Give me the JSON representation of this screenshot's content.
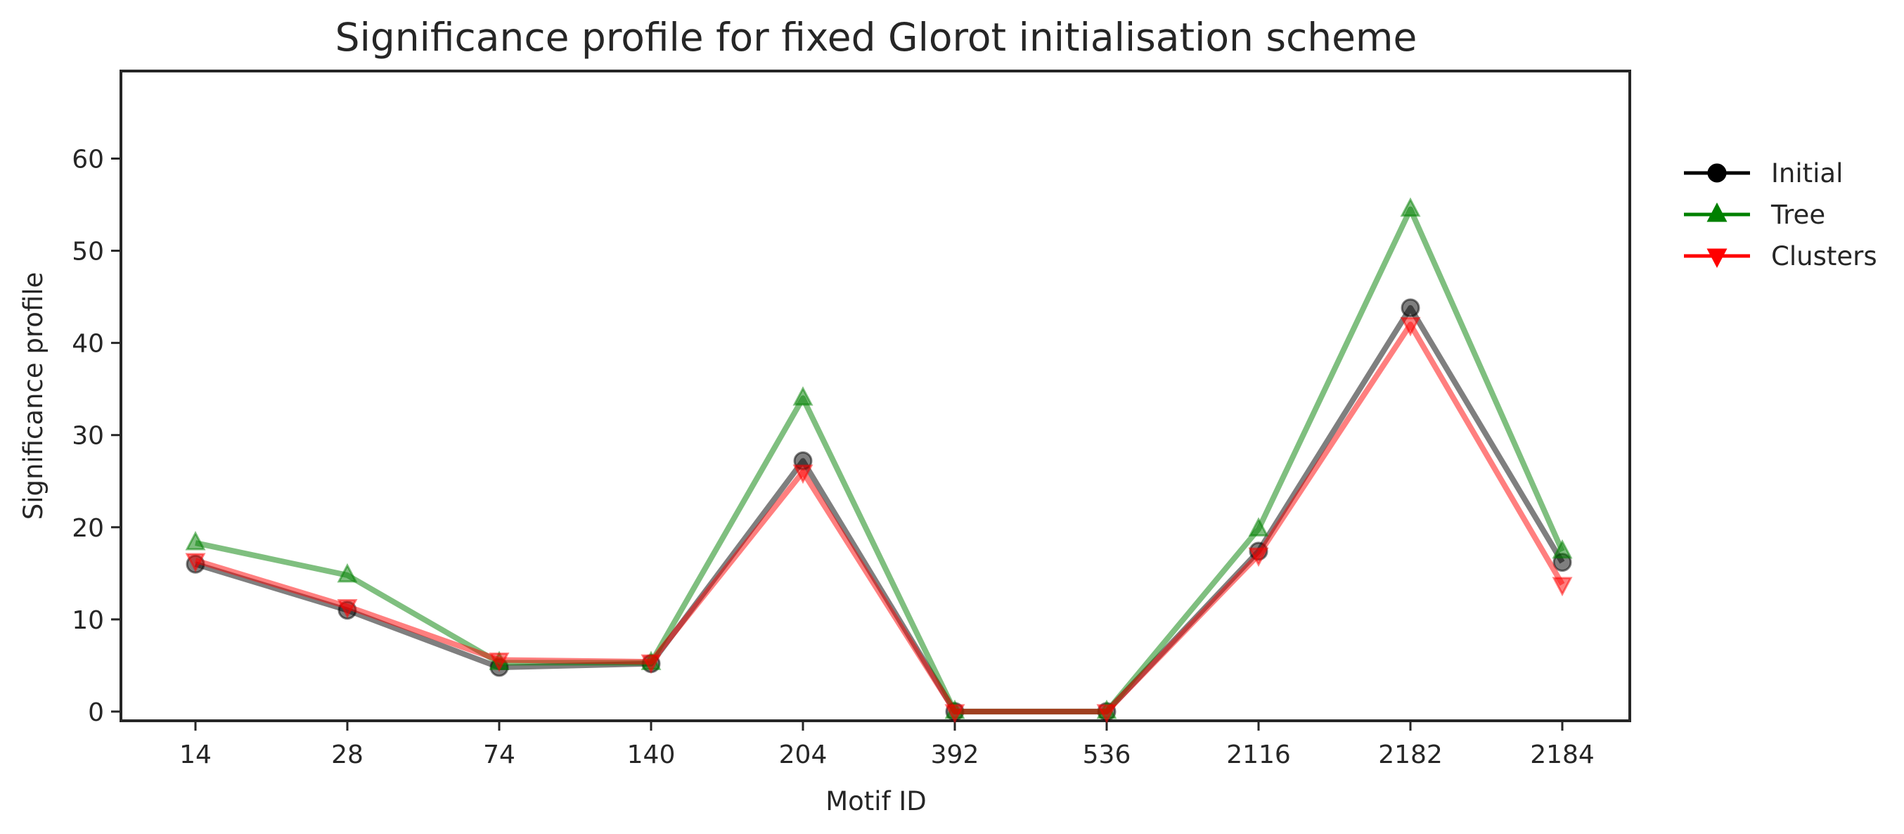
{
  "chart_data": {
    "type": "line",
    "title": "Significance profile for fixed Glorot initialisation scheme",
    "xlabel": "Motif ID",
    "ylabel": "Significance profile",
    "categories": [
      "14",
      "28",
      "74",
      "140",
      "204",
      "392",
      "536",
      "2116",
      "2182",
      "2184"
    ],
    "ylim": [
      -1,
      69.5
    ],
    "yticks": [
      0,
      10,
      20,
      30,
      40,
      50,
      60
    ],
    "grid": false,
    "legend_position": "right",
    "series": [
      {
        "name": "Initial",
        "color": "#000000",
        "marker": "circle",
        "values": [
          16.0,
          11.0,
          4.8,
          5.2,
          27.2,
          0.0,
          0.0,
          17.4,
          43.8,
          16.2
        ]
      },
      {
        "name": "Tree",
        "color": "#008000",
        "marker": "triangle-up",
        "values": [
          18.3,
          14.8,
          5.3,
          5.3,
          34.0,
          0.0,
          0.0,
          19.8,
          54.5,
          17.4
        ]
      },
      {
        "name": "Clusters",
        "color": "#ff0000",
        "marker": "triangle-down",
        "values": [
          16.4,
          11.4,
          5.6,
          5.4,
          26.0,
          0.0,
          0.0,
          17.0,
          42.0,
          13.8
        ]
      }
    ]
  }
}
